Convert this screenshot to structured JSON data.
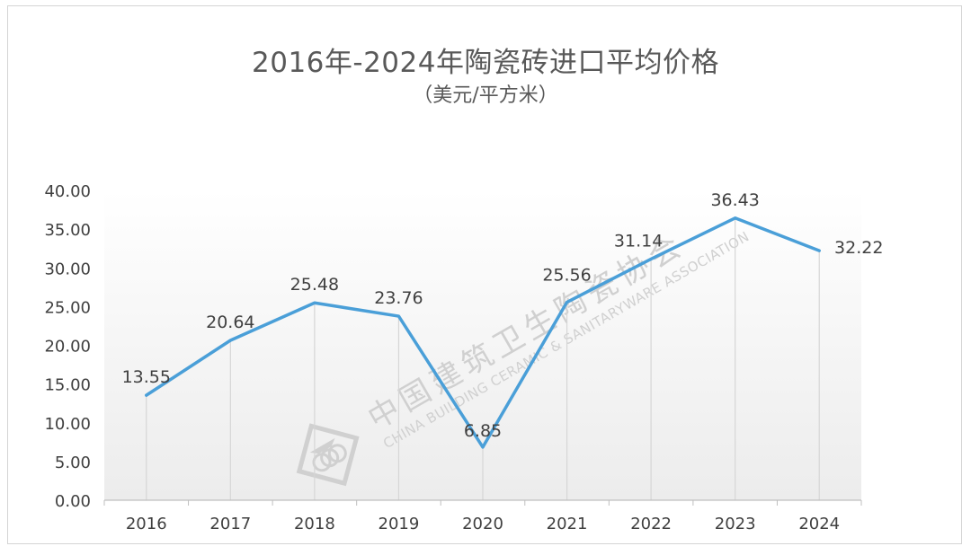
{
  "chart_data": {
    "type": "line",
    "title": "2016年-2024年陶瓷砖进口平均价格",
    "subtitle": "（美元/平方米）",
    "categories": [
      "2016",
      "2017",
      "2018",
      "2019",
      "2020",
      "2021",
      "2022",
      "2023",
      "2024"
    ],
    "series": [
      {
        "values": [
          13.55,
          20.64,
          25.48,
          23.76,
          6.85,
          25.56,
          31.14,
          36.43,
          32.22
        ],
        "data_labels": [
          "13.55",
          "20.64",
          "25.48",
          "23.76",
          "6.85",
          "25.56",
          "31.14",
          "36.43",
          "32.22"
        ],
        "color": "#4a9fd8"
      }
    ],
    "yticks": [
      "0.00",
      "5.00",
      "10.00",
      "15.00",
      "20.00",
      "25.00",
      "30.00",
      "35.00",
      "40.00"
    ],
    "ylim": [
      0,
      40
    ],
    "grid": "vertical drop lines",
    "legend": "none"
  },
  "watermark": {
    "chinese": "中国建筑卫生陶瓷协会",
    "english": "CHINA BUILDING CERAMIC & SANITARYWARE ASSOCIATION"
  }
}
